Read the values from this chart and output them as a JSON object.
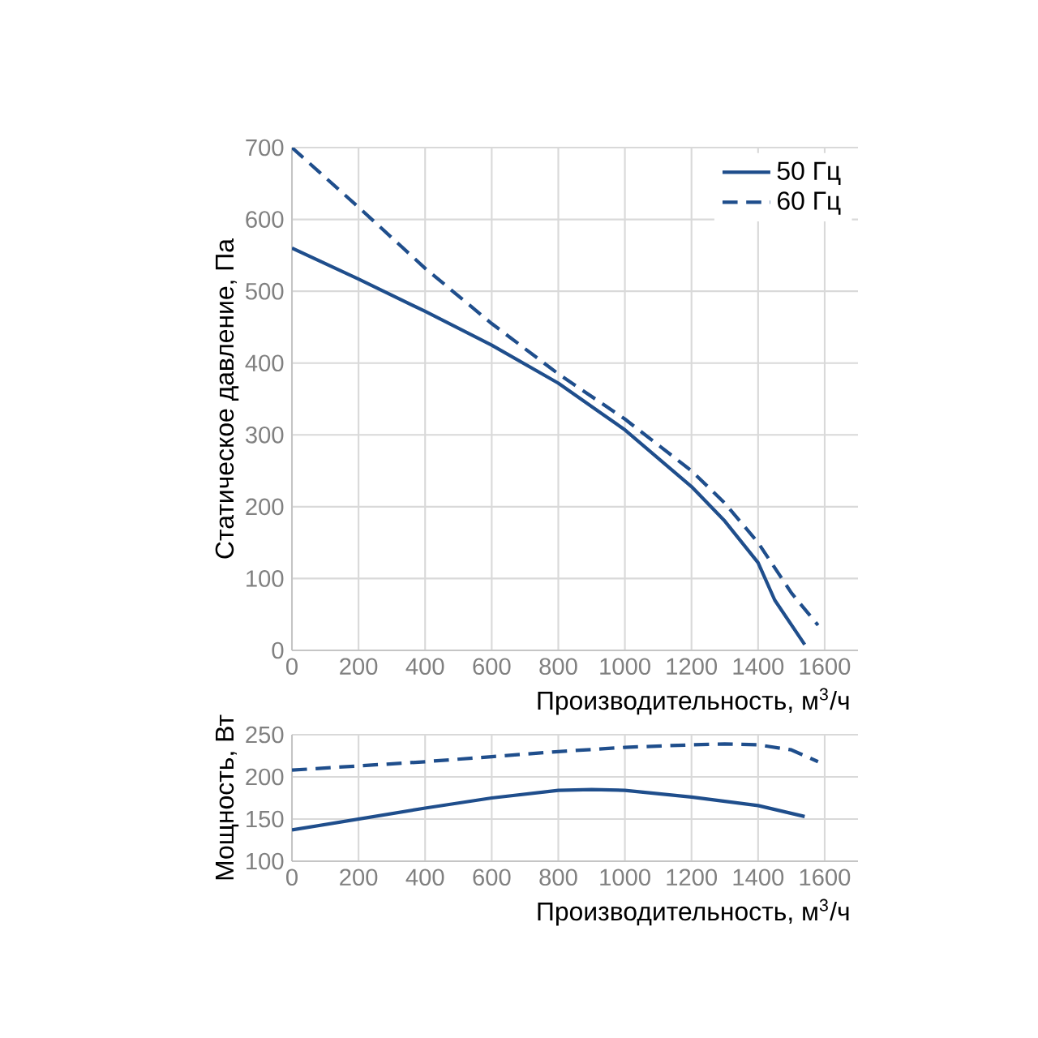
{
  "chart_data": [
    {
      "type": "line",
      "ylabel": "Статическое давление, Па",
      "xlabel": "Производительность, м$^{3}$/ч",
      "xlim": [
        0,
        1700
      ],
      "ylim": [
        0,
        700
      ],
      "xticks": [
        0,
        200,
        400,
        600,
        800,
        1000,
        1200,
        1400,
        1600
      ],
      "yticks": [
        0,
        100,
        200,
        300,
        400,
        500,
        600,
        700
      ],
      "grid": true,
      "legend": "top right",
      "series": [
        {
          "name": "50 Гц",
          "color": "#1f4e8c",
          "line_style": "solid",
          "x": [
            0,
            200,
            400,
            600,
            800,
            1000,
            1200,
            1300,
            1400,
            1450,
            1540
          ],
          "values": [
            560,
            517,
            472,
            425,
            372,
            307,
            228,
            180,
            122,
            70,
            8
          ]
        },
        {
          "name": "60 Гц",
          "color": "#1f4e8c",
          "line_style": "dashed",
          "x": [
            0,
            200,
            400,
            600,
            800,
            1000,
            1200,
            1300,
            1400,
            1500,
            1580
          ],
          "values": [
            700,
            617,
            532,
            455,
            385,
            322,
            250,
            205,
            150,
            80,
            35
          ]
        }
      ]
    },
    {
      "type": "line",
      "ylabel": "Мощность, Вт",
      "xlabel": "Производительность, м$^{3}$/ч",
      "xlim": [
        0,
        1700
      ],
      "ylim": [
        100,
        250
      ],
      "xticks": [
        0,
        200,
        400,
        600,
        800,
        1000,
        1200,
        1400,
        1600
      ],
      "yticks": [
        100,
        150,
        200,
        250
      ],
      "grid": true,
      "series": [
        {
          "color": "#1f4e8c",
          "line_style": "solid",
          "x": [
            0,
            200,
            400,
            600,
            800,
            900,
            1000,
            1200,
            1400,
            1540
          ],
          "values": [
            137,
            150,
            163,
            175,
            184,
            185,
            184,
            176,
            166,
            153
          ]
        },
        {
          "color": "#1f4e8c",
          "line_style": "dashed",
          "x": [
            0,
            200,
            400,
            600,
            800,
            1000,
            1200,
            1300,
            1400,
            1500,
            1580
          ],
          "values": [
            208,
            213,
            218,
            224,
            230,
            235,
            238,
            239,
            238,
            232,
            218
          ]
        }
      ]
    }
  ]
}
